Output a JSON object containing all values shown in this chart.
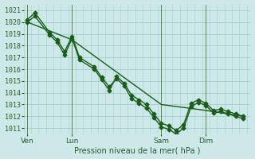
{
  "xlabel": "Pression niveau de la mer( hPa )",
  "ylim": [
    1010.5,
    1021.5
  ],
  "yticks": [
    1011,
    1012,
    1013,
    1014,
    1015,
    1016,
    1017,
    1018,
    1019,
    1020,
    1021
  ],
  "bg_color": "#cce8e8",
  "grid_color": "#aacccc",
  "line_color": "#1a5c1a",
  "xtick_labels": [
    "Ven",
    "Lun",
    "Sam",
    "Dim"
  ],
  "xtick_positions": [
    0,
    24,
    72,
    96
  ],
  "xlim": [
    -2,
    120
  ],
  "series1_x": [
    0,
    4,
    12,
    16,
    20,
    24,
    28,
    36,
    40,
    44,
    48,
    52,
    56,
    60,
    64,
    68,
    72,
    76,
    80,
    84,
    88,
    92,
    96,
    100,
    104,
    108,
    112,
    116
  ],
  "series1_y": [
    1020.0,
    1020.5,
    1018.9,
    1018.3,
    1017.2,
    1018.6,
    1016.8,
    1016.0,
    1015.1,
    1014.2,
    1015.4,
    1014.8,
    1013.8,
    1013.4,
    1013.0,
    1012.2,
    1011.4,
    1011.2,
    1010.8,
    1011.3,
    1013.1,
    1013.4,
    1013.1,
    1012.5,
    1012.6,
    1012.4,
    1012.2,
    1012.0
  ],
  "series2_x": [
    0,
    4,
    12,
    16,
    20,
    24,
    28,
    36,
    40,
    44,
    48,
    52,
    56,
    60,
    64,
    68,
    72,
    76,
    80,
    84,
    88,
    92,
    96,
    100,
    104,
    108,
    112,
    116
  ],
  "series2_y": [
    1020.2,
    1020.8,
    1019.1,
    1018.5,
    1017.5,
    1018.8,
    1017.0,
    1016.2,
    1015.3,
    1014.5,
    1015.2,
    1014.6,
    1013.5,
    1013.1,
    1012.7,
    1011.9,
    1011.1,
    1010.9,
    1010.5,
    1011.0,
    1012.8,
    1013.2,
    1012.9,
    1012.3,
    1012.4,
    1012.2,
    1012.0,
    1011.8
  ],
  "series3_x": [
    0,
    24,
    72,
    96,
    116
  ],
  "series3_y": [
    1020.0,
    1018.5,
    1013.0,
    1012.5,
    1012.0
  ],
  "vline_positions": [
    0,
    24,
    72,
    96
  ],
  "vline_color": "#2d5a2d",
  "marker_size": 2.5,
  "linewidth": 1.0,
  "font_color": "#2d5a2d",
  "font_size_y": 6.0,
  "font_size_x": 6.5,
  "font_size_xlabel": 7.0
}
